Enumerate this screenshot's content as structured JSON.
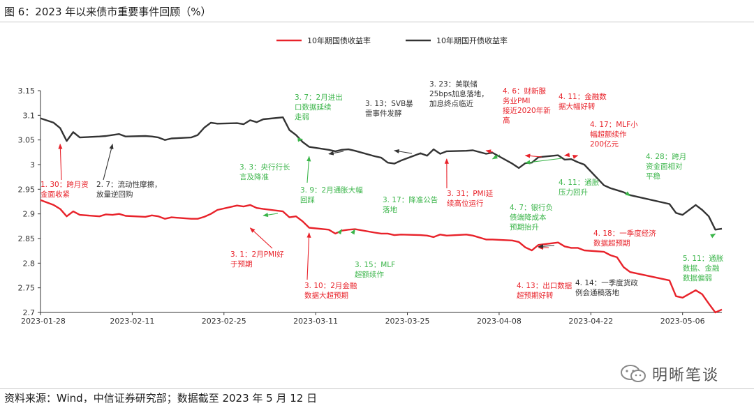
{
  "figure": {
    "title": "图 6：2023 年以来债市重要事件回顾（%）",
    "source": "资料来源：Wind，中信证券研究部；数据截至 2023 年 5 月 12 日",
    "watermark": "明晰笔谈",
    "annotation_colors": {
      "red": "#e8222a",
      "green": "#3bb54a",
      "black": "#333333"
    }
  },
  "chart_data": {
    "type": "line",
    "title": "",
    "xlabel": "",
    "ylabel": "",
    "ylim": [
      2.7,
      3.15
    ],
    "yticks": [
      "2.7",
      "2.75",
      "2.8",
      "2.85",
      "2.9",
      "2.95",
      "3",
      "3.05",
      "3.1",
      "3.15"
    ],
    "xticks": [
      "2023-01-28",
      "2023-02-11",
      "2023-02-25",
      "2023-03-11",
      "2023-03-25",
      "2023-04-08",
      "2023-04-22",
      "2023-05-06"
    ],
    "x_range": [
      "2023-01-28",
      "2023-05-12"
    ],
    "grid": false,
    "legend_position": "top-center",
    "series": [
      {
        "name": "10年期国债收益率",
        "color": "#e8222a",
        "points": [
          [
            "2023-01-28",
            2.928
          ],
          [
            "2023-01-30",
            2.918
          ],
          [
            "2023-01-31",
            2.91
          ],
          [
            "2023-02-01",
            2.895
          ],
          [
            "2023-02-02",
            2.905
          ],
          [
            "2023-02-03",
            2.898
          ],
          [
            "2023-02-06",
            2.895
          ],
          [
            "2023-02-07",
            2.899
          ],
          [
            "2023-02-08",
            2.898
          ],
          [
            "2023-02-09",
            2.9
          ],
          [
            "2023-02-10",
            2.896
          ],
          [
            "2023-02-13",
            2.894
          ],
          [
            "2023-02-14",
            2.897
          ],
          [
            "2023-02-15",
            2.895
          ],
          [
            "2023-02-16",
            2.89
          ],
          [
            "2023-02-17",
            2.893
          ],
          [
            "2023-02-20",
            2.89
          ],
          [
            "2023-02-21",
            2.89
          ],
          [
            "2023-02-22",
            2.894
          ],
          [
            "2023-02-23",
            2.9
          ],
          [
            "2023-02-24",
            2.908
          ],
          [
            "2023-02-27",
            2.917
          ],
          [
            "2023-02-28",
            2.915
          ],
          [
            "2023-03-01",
            2.918
          ],
          [
            "2023-03-02",
            2.912
          ],
          [
            "2023-03-03",
            2.91
          ],
          [
            "2023-03-06",
            2.905
          ],
          [
            "2023-03-07",
            2.893
          ],
          [
            "2023-03-08",
            2.895
          ],
          [
            "2023-03-09",
            2.885
          ],
          [
            "2023-03-10",
            2.872
          ],
          [
            "2023-03-13",
            2.868
          ],
          [
            "2023-03-14",
            2.86
          ],
          [
            "2023-03-15",
            2.866
          ],
          [
            "2023-03-16",
            2.868
          ],
          [
            "2023-03-17",
            2.869
          ],
          [
            "2023-03-20",
            2.862
          ],
          [
            "2023-03-21",
            2.86
          ],
          [
            "2023-03-22",
            2.86
          ],
          [
            "2023-03-23",
            2.857
          ],
          [
            "2023-03-24",
            2.858
          ],
          [
            "2023-03-27",
            2.857
          ],
          [
            "2023-03-28",
            2.856
          ],
          [
            "2023-03-29",
            2.853
          ],
          [
            "2023-03-30",
            2.858
          ],
          [
            "2023-03-31",
            2.856
          ],
          [
            "2023-04-03",
            2.858
          ],
          [
            "2023-04-04",
            2.856
          ],
          [
            "2023-04-06",
            2.848
          ],
          [
            "2023-04-07",
            2.848
          ],
          [
            "2023-04-10",
            2.846
          ],
          [
            "2023-04-11",
            2.843
          ],
          [
            "2023-04-12",
            2.832
          ],
          [
            "2023-04-13",
            2.826
          ],
          [
            "2023-04-14",
            2.837
          ],
          [
            "2023-04-17",
            2.842
          ],
          [
            "2023-04-18",
            2.834
          ],
          [
            "2023-04-19",
            2.831
          ],
          [
            "2023-04-20",
            2.831
          ],
          [
            "2023-04-21",
            2.826
          ],
          [
            "2023-04-24",
            2.823
          ],
          [
            "2023-04-25",
            2.816
          ],
          [
            "2023-04-26",
            2.812
          ],
          [
            "2023-04-27",
            2.792
          ],
          [
            "2023-04-28",
            2.782
          ],
          [
            "2023-05-04",
            2.765
          ],
          [
            "2023-05-05",
            2.733
          ],
          [
            "2023-05-06",
            2.73
          ],
          [
            "2023-05-08",
            2.745
          ],
          [
            "2023-05-09",
            2.737
          ],
          [
            "2023-05-10",
            2.718
          ],
          [
            "2023-05-11",
            2.7
          ],
          [
            "2023-05-12",
            2.706
          ]
        ]
      },
      {
        "name": "10年期国开债收益率",
        "color": "#333333",
        "points": [
          [
            "2023-01-28",
            3.094
          ],
          [
            "2023-01-30",
            3.085
          ],
          [
            "2023-01-31",
            3.074
          ],
          [
            "2023-02-01",
            3.048
          ],
          [
            "2023-02-02",
            3.066
          ],
          [
            "2023-02-03",
            3.055
          ],
          [
            "2023-02-06",
            3.057
          ],
          [
            "2023-02-07",
            3.058
          ],
          [
            "2023-02-08",
            3.06
          ],
          [
            "2023-02-09",
            3.062
          ],
          [
            "2023-02-10",
            3.057
          ],
          [
            "2023-02-13",
            3.058
          ],
          [
            "2023-02-14",
            3.057
          ],
          [
            "2023-02-15",
            3.055
          ],
          [
            "2023-02-16",
            3.05
          ],
          [
            "2023-02-17",
            3.053
          ],
          [
            "2023-02-20",
            3.055
          ],
          [
            "2023-02-21",
            3.06
          ],
          [
            "2023-02-22",
            3.075
          ],
          [
            "2023-02-23",
            3.085
          ],
          [
            "2023-02-24",
            3.083
          ],
          [
            "2023-02-27",
            3.084
          ],
          [
            "2023-02-28",
            3.082
          ],
          [
            "2023-03-01",
            3.09
          ],
          [
            "2023-03-02",
            3.086
          ],
          [
            "2023-03-03",
            3.092
          ],
          [
            "2023-03-06",
            3.096
          ],
          [
            "2023-03-07",
            3.07
          ],
          [
            "2023-03-08",
            3.06
          ],
          [
            "2023-03-09",
            3.046
          ],
          [
            "2023-03-10",
            3.036
          ],
          [
            "2023-03-13",
            3.03
          ],
          [
            "2023-03-14",
            3.027
          ],
          [
            "2023-03-15",
            3.03
          ],
          [
            "2023-03-16",
            3.031
          ],
          [
            "2023-03-17",
            3.028
          ],
          [
            "2023-03-20",
            3.017
          ],
          [
            "2023-03-21",
            3.014
          ],
          [
            "2023-03-22",
            3.004
          ],
          [
            "2023-03-23",
            3.002
          ],
          [
            "2023-03-24",
            3.008
          ],
          [
            "2023-03-27",
            3.023
          ],
          [
            "2023-03-28",
            3.018
          ],
          [
            "2023-03-29",
            3.031
          ],
          [
            "2023-03-30",
            3.022
          ],
          [
            "2023-03-31",
            3.027
          ],
          [
            "2023-04-03",
            3.028
          ],
          [
            "2023-04-04",
            3.029
          ],
          [
            "2023-04-06",
            3.022
          ],
          [
            "2023-04-07",
            3.024
          ],
          [
            "2023-04-10",
            3.002
          ],
          [
            "2023-04-11",
            2.993
          ],
          [
            "2023-04-12",
            3.003
          ],
          [
            "2023-04-13",
            3.004
          ],
          [
            "2023-04-14",
            3.015
          ],
          [
            "2023-04-17",
            3.019
          ],
          [
            "2023-04-18",
            3.01
          ],
          [
            "2023-04-19",
            3.011
          ],
          [
            "2023-04-20",
            3.005
          ],
          [
            "2023-04-21",
            3.0
          ],
          [
            "2023-04-24",
            2.958
          ],
          [
            "2023-04-25",
            2.952
          ],
          [
            "2023-04-26",
            2.948
          ],
          [
            "2023-04-27",
            2.944
          ],
          [
            "2023-04-28",
            2.938
          ],
          [
            "2023-05-04",
            2.92
          ],
          [
            "2023-05-05",
            2.902
          ],
          [
            "2023-05-06",
            2.898
          ],
          [
            "2023-05-08",
            2.918
          ],
          [
            "2023-05-09",
            2.908
          ],
          [
            "2023-05-10",
            2.895
          ],
          [
            "2023-05-11",
            2.868
          ],
          [
            "2023-05-12",
            2.87
          ]
        ]
      }
    ],
    "annotations": [
      {
        "color": "red",
        "lines": [
          "1. 30：跨月资",
          "金面收紧"
        ],
        "target": [
          "2023-01-31",
          3.05
        ]
      },
      {
        "color": "black",
        "lines": [
          "2. 7：流动性摩擦，",
          "放量逆回购"
        ],
        "target": [
          "2023-02-08",
          3.05
        ]
      },
      {
        "color": "green",
        "lines": [
          "3. 3：央行行长",
          "言及降准"
        ],
        "target": [
          "2023-03-03",
          2.905
        ]
      },
      {
        "color": "green",
        "lines": [
          "3. 7：2月进出",
          "口数据延续",
          "走弱"
        ],
        "target": [
          "2023-03-09",
          3.043
        ]
      },
      {
        "color": "red",
        "lines": [
          "3. 1：2月PMI好",
          "于预期"
        ],
        "target": [
          "2023-03-01",
          2.88
        ]
      },
      {
        "color": "green",
        "lines": [
          "3. 9：2月通胀大幅",
          "回踩"
        ],
        "target": [
          "2023-03-10",
          3.025
        ]
      },
      {
        "color": "red",
        "lines": [
          "3. 10：2月金融",
          "数据大超预期"
        ],
        "target": [
          "2023-03-10",
          2.87
        ]
      },
      {
        "color": "black",
        "lines": [
          "3. 13：SVB暴",
          "雷事件发酵"
        ],
        "target": [
          "2023-03-13",
          3.03
        ]
      },
      {
        "color": "green",
        "lines": [
          "3. 15：MLF",
          "超额续作"
        ],
        "target": [
          "2023-03-15",
          2.86
        ]
      },
      {
        "color": "green",
        "lines": [
          "3. 17：降准公告",
          "落地"
        ],
        "target": [
          "2023-03-17",
          2.86
        ]
      },
      {
        "color": "black",
        "lines": [
          "3. 23：美联储",
          "25bps加息落地，",
          "加息终点临近"
        ],
        "target": [
          "2023-03-23",
          3.02
        ]
      },
      {
        "color": "red",
        "lines": [
          "3. 31：PMI延",
          "续高位运行"
        ],
        "target": [
          "2023-03-31",
          3.02
        ]
      },
      {
        "color": "red",
        "lines": [
          "4. 6：财新服",
          "务业PMI",
          "接近2020年新",
          "高"
        ],
        "target": [
          "2023-04-06",
          3.02
        ]
      },
      {
        "color": "green",
        "lines": [
          "4. 7：银行负",
          "债端降成本",
          "预期抬升"
        ],
        "target": [
          "2023-04-07",
          3.02
        ]
      },
      {
        "color": "red",
        "lines": [
          "4. 11：金融数",
          "据大幅好转"
        ],
        "target": [
          "2023-04-12",
          3.01
        ]
      },
      {
        "color": "green",
        "lines": [
          "4. 11：通胀",
          "压力回升"
        ],
        "target": [
          "2023-04-12",
          2.995
        ]
      },
      {
        "color": "red",
        "lines": [
          "4. 13：出口数据",
          "超预期好转"
        ],
        "target": [
          "2023-04-14",
          2.84
        ]
      },
      {
        "color": "black",
        "lines": [
          "4. 14：一季度货政",
          "例会通稿落地"
        ],
        "target": [
          "2023-04-14",
          2.842
        ]
      },
      {
        "color": "red",
        "lines": [
          "4. 17：MLF小",
          "幅超额续作",
          "200亿元"
        ],
        "target": [
          "2023-04-18",
          3.01
        ]
      },
      {
        "color": "red",
        "lines": [
          "4. 18：一季度经济",
          "数据超预期"
        ],
        "target": [
          "2023-04-20",
          3.01
        ]
      },
      {
        "color": "green",
        "lines": [
          "4. 28：跨月",
          "资金面相对",
          "平稳"
        ],
        "target": [
          "2023-04-28",
          2.945
        ]
      },
      {
        "color": "green",
        "lines": [
          "5. 11：通胀",
          "数据、金融",
          "数据偏弱"
        ],
        "target": [
          "2023-05-11",
          2.868
        ]
      }
    ]
  }
}
